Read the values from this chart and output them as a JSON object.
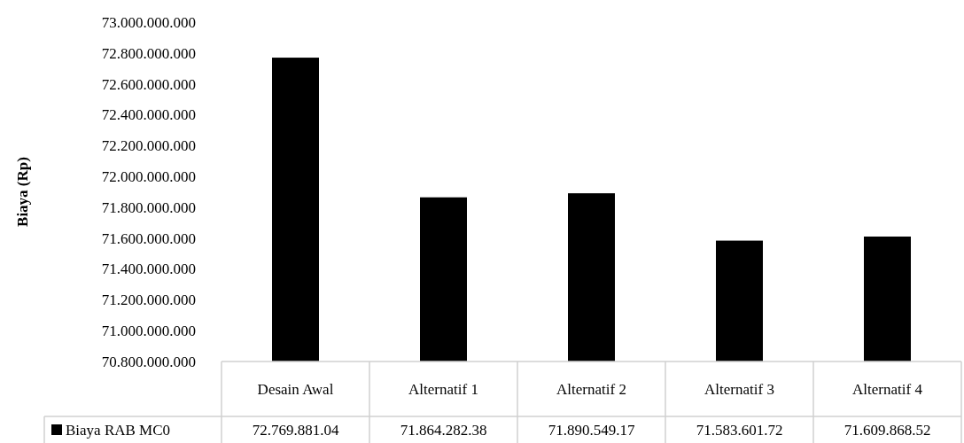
{
  "chart_data": {
    "type": "bar",
    "ylabel": "Biaya (Rp)",
    "categories": [
      "Desain Awal",
      "Alternatif 1",
      "Alternatif 2",
      "Alternatif 3",
      "Alternatif 4"
    ],
    "series": [
      {
        "name": "Biaya RAB MC0",
        "color": "#000000",
        "values": [
          72769881040,
          71864282380,
          71890549170,
          71583601720,
          71609868520
        ],
        "value_labels": [
          "72.769.881.04",
          "71.864.282.38",
          "71.890.549.17",
          "71.583.601.72",
          "71.609.868.52"
        ]
      }
    ],
    "ylim": [
      70800000000,
      73000000000
    ],
    "yticks": [
      {
        "value": 70800000000,
        "label": "70.800.000.000"
      },
      {
        "value": 71000000000,
        "label": "71.000.000.000"
      },
      {
        "value": 71200000000,
        "label": "71.200.000.000"
      },
      {
        "value": 71400000000,
        "label": "71.400.000.000"
      },
      {
        "value": 71600000000,
        "label": "71.600.000.000"
      },
      {
        "value": 71800000000,
        "label": "71.800.000.000"
      },
      {
        "value": 72000000000,
        "label": "72.000.000.000"
      },
      {
        "value": 72200000000,
        "label": "72.200.000.000"
      },
      {
        "value": 72400000000,
        "label": "72.400.000.000"
      },
      {
        "value": 72600000000,
        "label": "72.600.000.000"
      },
      {
        "value": 72800000000,
        "label": "72.800.000.000"
      },
      {
        "value": 73000000000,
        "label": "73.000.000.000"
      }
    ],
    "grid": false,
    "legend": "bottom"
  }
}
